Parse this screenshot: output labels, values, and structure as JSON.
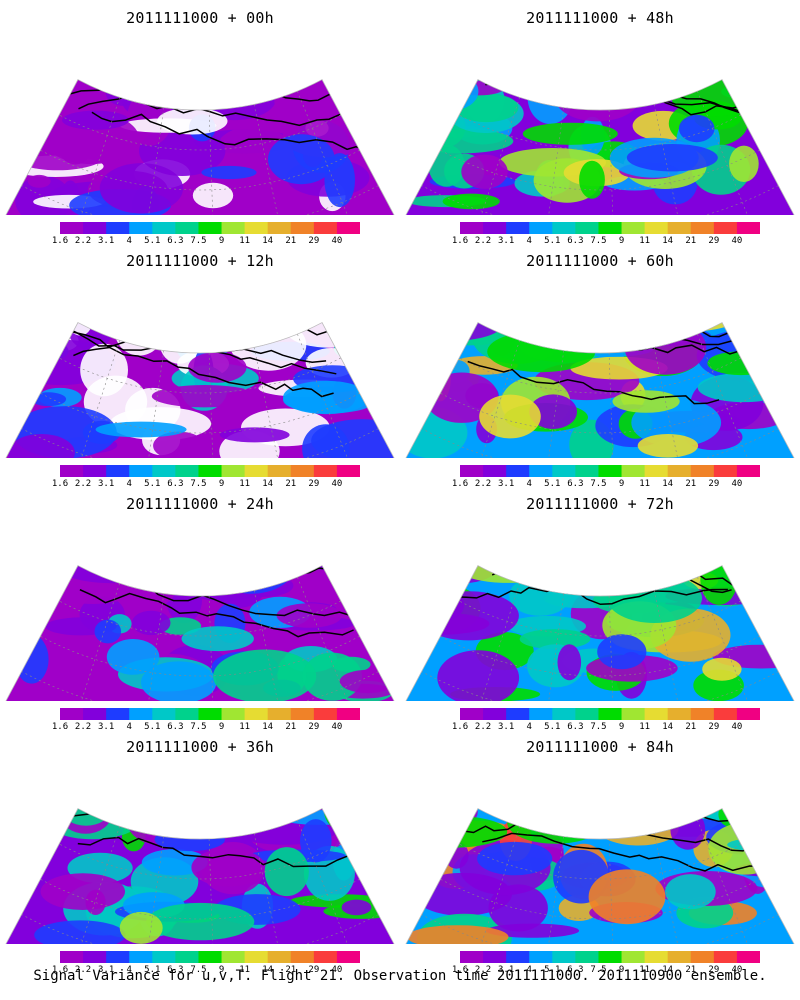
{
  "panels": [
    {
      "title": "2011111000 + 00h",
      "level": 0.0
    },
    {
      "title": "2011111000 + 48h",
      "level": 0.55
    },
    {
      "title": "2011111000 + 12h",
      "level": 0.15
    },
    {
      "title": "2011111000 + 60h",
      "level": 0.65
    },
    {
      "title": "2011111000 + 24h",
      "level": 0.28
    },
    {
      "title": "2011111000 + 72h",
      "level": 0.75
    },
    {
      "title": "2011111000 + 36h",
      "level": 0.42
    },
    {
      "title": "2011111000 + 84h",
      "level": 0.85
    }
  ],
  "colorbar": {
    "labels": [
      "1.6",
      "2.2",
      "3.1",
      "4",
      "5.1",
      "6.3",
      "7.5",
      "9",
      "11",
      "14",
      "21",
      "29",
      "40"
    ],
    "colors": [
      "#ffffff",
      "#a000c8",
      "#8200dc",
      "#1e3cff",
      "#00a0ff",
      "#00c8c8",
      "#00d28c",
      "#00dc00",
      "#a0e632",
      "#e6dc32",
      "#e6af2d",
      "#f08228",
      "#fa3c3c",
      "#f00082"
    ]
  },
  "caption": "Signal Variance for u,v,T. Flight 21. Observation time 2011111000. 2011110900 ensemble."
}
